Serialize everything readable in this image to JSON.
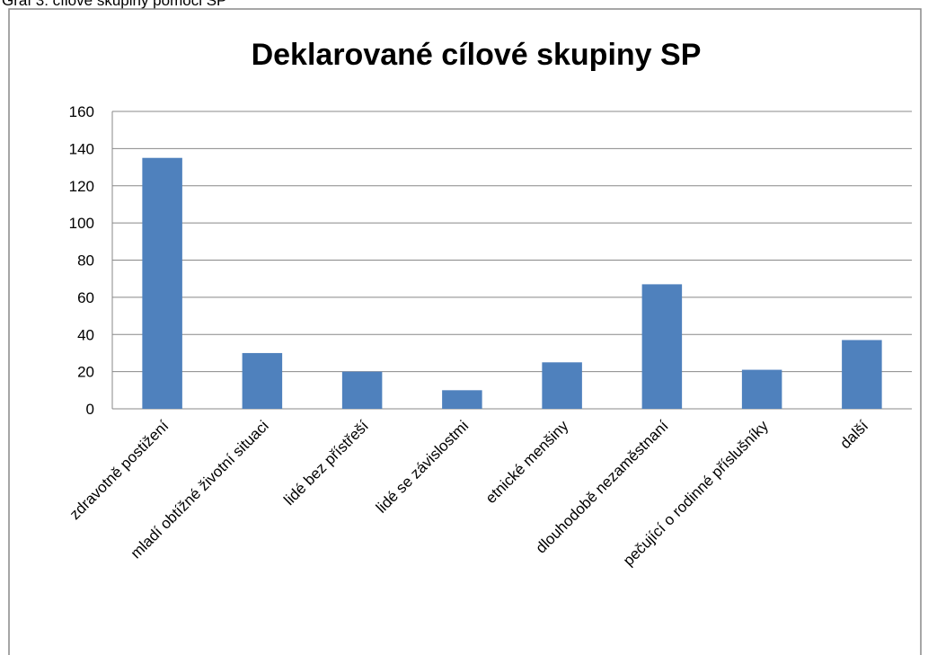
{
  "caption": "Graf 3: cílové skupiny pomoci SP",
  "chart_data": {
    "type": "bar",
    "title": "Deklarované cílové skupiny SP",
    "categories": [
      "zdravotně postižení",
      "mladí obtížné životní situaci",
      "lidé bez přístřeší",
      "lidé se závislostmi",
      "etnické menšiny",
      "dlouhodobě nezaměstnaní",
      "pečující o rodinné příslušníky",
      "další"
    ],
    "values": [
      135,
      30,
      20,
      10,
      25,
      67,
      21,
      37
    ],
    "color": "#4f81bd",
    "ylim": [
      0,
      160
    ],
    "yticks": [
      0,
      20,
      40,
      60,
      80,
      100,
      120,
      140,
      160
    ],
    "grid": true
  }
}
